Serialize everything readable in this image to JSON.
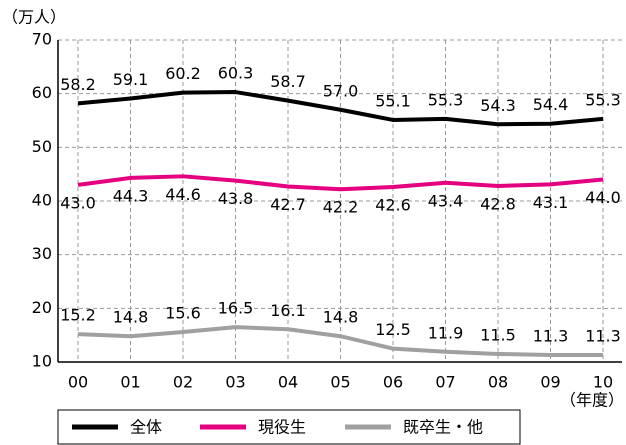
{
  "chart_data": {
    "type": "line",
    "y_label": "（万人）",
    "x_label": "（年度）",
    "categories": [
      "00",
      "01",
      "02",
      "03",
      "04",
      "05",
      "06",
      "07",
      "08",
      "09",
      "10"
    ],
    "series": [
      {
        "name": "全体",
        "color": "#000000",
        "values": [
          58.2,
          59.1,
          60.2,
          60.3,
          58.7,
          57.0,
          55.1,
          55.3,
          54.3,
          54.4,
          55.3
        ],
        "value_labels": [
          "58.2",
          "59.1",
          "60.2",
          "60.3",
          "58.7",
          "57.0",
          "55.1",
          "55.3",
          "54.3",
          "54.4",
          "55.3"
        ]
      },
      {
        "name": "現役生",
        "color": "#e4007f",
        "values": [
          43.0,
          44.3,
          44.6,
          43.8,
          42.7,
          42.2,
          42.6,
          43.4,
          42.8,
          43.1,
          44.0
        ],
        "value_labels": [
          "43.0",
          "44.3",
          "44.6",
          "43.8",
          "42.7",
          "42.2",
          "42.6",
          "43.4",
          "42.8",
          "43.1",
          "44.0"
        ]
      },
      {
        "name": "既卒生・他",
        "color": "#a0a0a0",
        "values": [
          15.2,
          14.8,
          15.6,
          16.5,
          16.1,
          14.8,
          12.5,
          11.9,
          11.5,
          11.3,
          11.3
        ],
        "value_labels": [
          "15.2",
          "14.8",
          "15.6",
          "16.5",
          "16.1",
          "14.8",
          "12.5",
          "11.9",
          "11.5",
          "11.3",
          "11.3"
        ]
      }
    ],
    "ylim": [
      10,
      70
    ],
    "yticks": [
      10,
      20,
      30,
      40,
      50,
      60,
      70
    ],
    "grid": true
  }
}
